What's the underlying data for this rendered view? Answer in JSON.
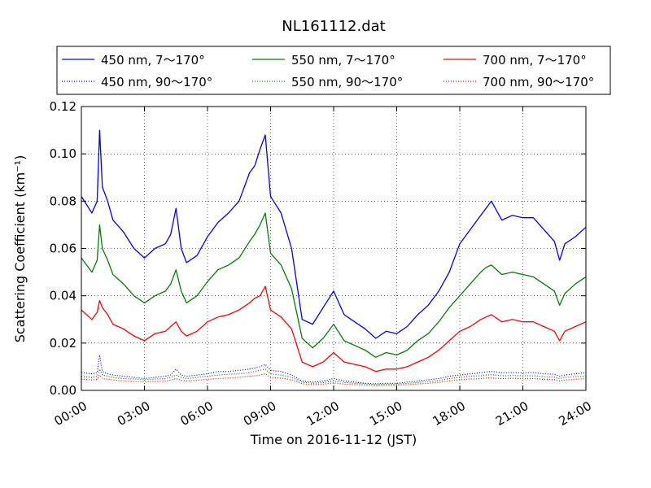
{
  "chart_data": {
    "type": "line",
    "title": "NL161112.dat",
    "xlabel": "Time on 2016-11-12 (JST)",
    "ylabel": "Scattering Coefficient (km⁻¹)",
    "xlim": [
      "00:00",
      "24:00"
    ],
    "ylim": [
      0.0,
      0.12
    ],
    "x_ticks": [
      "00:00",
      "03:00",
      "06:00",
      "09:00",
      "12:00",
      "15:00",
      "18:00",
      "21:00",
      "24:00"
    ],
    "y_ticks": [
      "0.00",
      "0.02",
      "0.04",
      "0.06",
      "0.08",
      "0.10",
      "0.12"
    ],
    "grid": true,
    "legend_position": "top, outside plot (3 columns)",
    "x": [
      "00:00",
      "00:30",
      "00:45",
      "00:52",
      "01:00",
      "01:15",
      "01:30",
      "02:00",
      "02:30",
      "03:00",
      "03:30",
      "04:00",
      "04:15",
      "04:30",
      "04:45",
      "05:00",
      "05:30",
      "06:00",
      "06:30",
      "07:00",
      "07:30",
      "08:00",
      "08:15",
      "08:30",
      "08:45",
      "09:00",
      "09:30",
      "10:00",
      "10:30",
      "11:00",
      "11:30",
      "12:00",
      "12:30",
      "13:00",
      "13:30",
      "14:00",
      "14:30",
      "15:00",
      "15:30",
      "16:00",
      "16:30",
      "17:00",
      "17:30",
      "18:00",
      "18:30",
      "19:00",
      "19:15",
      "19:30",
      "20:00",
      "20:30",
      "21:00",
      "21:30",
      "22:00",
      "22:30",
      "22:45",
      "23:00",
      "23:30",
      "24:00"
    ],
    "series": [
      {
        "name": "450 nm, 7～170°",
        "color": "#0000ff",
        "style": "solid",
        "values": [
          0.082,
          0.075,
          0.08,
          0.11,
          0.086,
          0.08,
          0.072,
          0.067,
          0.06,
          0.056,
          0.06,
          0.062,
          0.066,
          0.077,
          0.06,
          0.054,
          0.057,
          0.065,
          0.071,
          0.075,
          0.08,
          0.092,
          0.095,
          0.102,
          0.108,
          0.082,
          0.075,
          0.06,
          0.03,
          0.028,
          0.035,
          0.042,
          0.032,
          0.029,
          0.026,
          0.022,
          0.025,
          0.024,
          0.027,
          0.032,
          0.036,
          0.042,
          0.05,
          0.062,
          0.068,
          0.074,
          0.077,
          0.08,
          0.072,
          0.074,
          0.073,
          0.073,
          0.068,
          0.063,
          0.055,
          0.062,
          0.065,
          0.069
        ]
      },
      {
        "name": "550 nm, 7～170°",
        "color": "#008000",
        "style": "solid",
        "values": [
          0.056,
          0.05,
          0.055,
          0.07,
          0.06,
          0.055,
          0.049,
          0.045,
          0.04,
          0.037,
          0.04,
          0.042,
          0.045,
          0.051,
          0.042,
          0.037,
          0.04,
          0.046,
          0.051,
          0.053,
          0.056,
          0.063,
          0.066,
          0.07,
          0.075,
          0.058,
          0.053,
          0.043,
          0.022,
          0.018,
          0.022,
          0.028,
          0.021,
          0.019,
          0.017,
          0.014,
          0.016,
          0.015,
          0.017,
          0.021,
          0.024,
          0.029,
          0.035,
          0.04,
          0.045,
          0.05,
          0.052,
          0.053,
          0.049,
          0.05,
          0.049,
          0.048,
          0.045,
          0.042,
          0.036,
          0.041,
          0.045,
          0.048
        ]
      },
      {
        "name": "700 nm, 7～170°",
        "color": "#ff0000",
        "style": "solid",
        "values": [
          0.034,
          0.03,
          0.033,
          0.038,
          0.035,
          0.032,
          0.028,
          0.026,
          0.023,
          0.021,
          0.024,
          0.025,
          0.027,
          0.029,
          0.025,
          0.023,
          0.025,
          0.029,
          0.031,
          0.032,
          0.034,
          0.037,
          0.039,
          0.04,
          0.044,
          0.034,
          0.031,
          0.026,
          0.012,
          0.01,
          0.012,
          0.016,
          0.012,
          0.011,
          0.01,
          0.008,
          0.009,
          0.009,
          0.01,
          0.012,
          0.014,
          0.017,
          0.021,
          0.025,
          0.027,
          0.03,
          0.031,
          0.032,
          0.029,
          0.03,
          0.029,
          0.029,
          0.027,
          0.025,
          0.021,
          0.025,
          0.027,
          0.029
        ]
      },
      {
        "name": "450 nm, 90～170°",
        "color": "#0000ff",
        "style": "dotted",
        "values": [
          0.0075,
          0.007,
          0.0075,
          0.015,
          0.008,
          0.007,
          0.0065,
          0.006,
          0.0055,
          0.005,
          0.0055,
          0.006,
          0.0065,
          0.009,
          0.0065,
          0.006,
          0.0065,
          0.007,
          0.008,
          0.008,
          0.0085,
          0.009,
          0.0095,
          0.01,
          0.011,
          0.0085,
          0.008,
          0.0065,
          0.004,
          0.0035,
          0.004,
          0.005,
          0.004,
          0.0035,
          0.003,
          0.0028,
          0.003,
          0.003,
          0.0035,
          0.004,
          0.0045,
          0.005,
          0.006,
          0.0065,
          0.007,
          0.0075,
          0.0078,
          0.008,
          0.0075,
          0.0075,
          0.0075,
          0.0075,
          0.007,
          0.0068,
          0.006,
          0.0065,
          0.007,
          0.0075
        ]
      },
      {
        "name": "550 nm, 90～170°",
        "color": "#008000",
        "style": "dotted",
        "values": [
          0.006,
          0.0055,
          0.006,
          0.009,
          0.0065,
          0.006,
          0.0055,
          0.005,
          0.0048,
          0.0045,
          0.0048,
          0.005,
          0.0055,
          0.0065,
          0.0055,
          0.005,
          0.0055,
          0.006,
          0.0065,
          0.0068,
          0.007,
          0.0075,
          0.008,
          0.0085,
          0.009,
          0.007,
          0.0065,
          0.0055,
          0.0035,
          0.003,
          0.0033,
          0.004,
          0.0033,
          0.003,
          0.0027,
          0.0024,
          0.0026,
          0.0026,
          0.003,
          0.0033,
          0.0037,
          0.0042,
          0.005,
          0.0055,
          0.006,
          0.0062,
          0.0065,
          0.0066,
          0.0062,
          0.0063,
          0.0062,
          0.0062,
          0.0058,
          0.0056,
          0.005,
          0.0055,
          0.0058,
          0.006
        ]
      },
      {
        "name": "700 nm, 90～170°",
        "color": "#ff0000",
        "style": "dotted",
        "values": [
          0.0048,
          0.0044,
          0.0047,
          0.0065,
          0.005,
          0.0047,
          0.0044,
          0.004,
          0.0038,
          0.0036,
          0.0038,
          0.004,
          0.0043,
          0.005,
          0.0043,
          0.004,
          0.0043,
          0.0047,
          0.005,
          0.0052,
          0.0055,
          0.006,
          0.0062,
          0.0065,
          0.007,
          0.0055,
          0.0052,
          0.0045,
          0.0028,
          0.0024,
          0.0026,
          0.0032,
          0.0026,
          0.0024,
          0.0022,
          0.002,
          0.0021,
          0.0021,
          0.0024,
          0.0027,
          0.003,
          0.0034,
          0.004,
          0.0045,
          0.0048,
          0.005,
          0.0052,
          0.0053,
          0.005,
          0.0051,
          0.005,
          0.005,
          0.0047,
          0.0045,
          0.004,
          0.0044,
          0.0047,
          0.005
        ]
      }
    ]
  }
}
